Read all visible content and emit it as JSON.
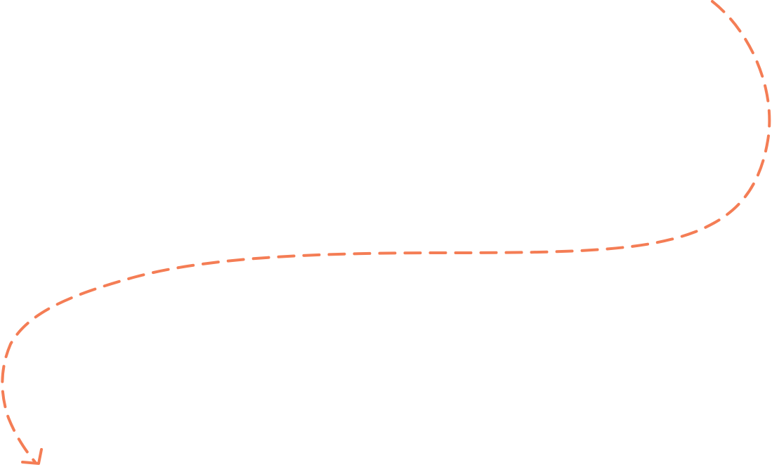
{
  "diagram": {
    "connector": {
      "stroke_color": "#F47D55",
      "line_style": "dashed",
      "direction": "top-right-to-bottom-left",
      "arrowhead_icon": "arrowhead-icon"
    }
  }
}
